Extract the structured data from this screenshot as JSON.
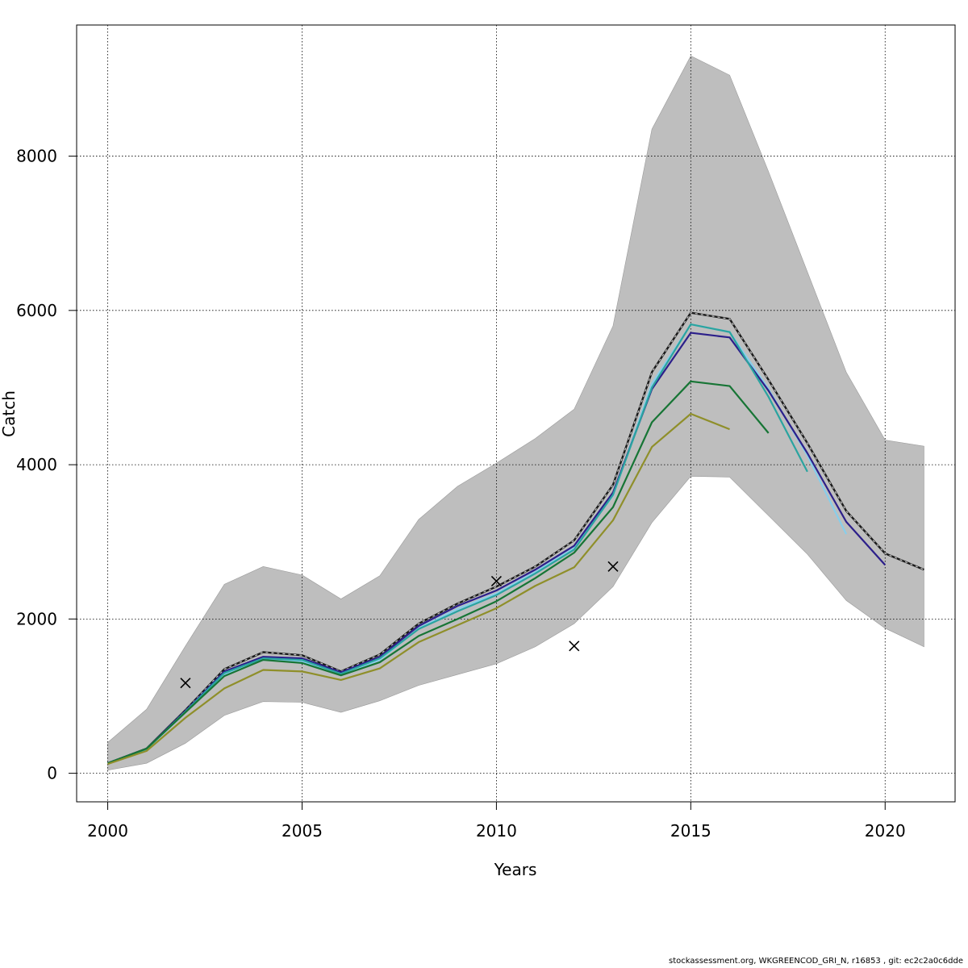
{
  "chart_data": {
    "type": "line",
    "xlabel": "Years",
    "ylabel": "Catch",
    "xlim": [
      1999.2,
      2021.8
    ],
    "ylim": [
      -370,
      9700
    ],
    "xticks": [
      2000,
      2005,
      2010,
      2015,
      2020
    ],
    "yticks": [
      0,
      2000,
      4000,
      6000,
      8000
    ],
    "grid": true,
    "legend": "none",
    "band": {
      "x": [
        2000,
        2001,
        2002,
        2003,
        2004,
        2005,
        2006,
        2007,
        2008,
        2009,
        2010,
        2011,
        2012,
        2013,
        2014,
        2015,
        2016,
        2017,
        2018,
        2019,
        2020,
        2021
      ],
      "upper": [
        400,
        830,
        1650,
        2450,
        2680,
        2570,
        2260,
        2560,
        3290,
        3720,
        4020,
        4340,
        4720,
        5800,
        8350,
        9300,
        9050,
        7800,
        6500,
        5200,
        4320,
        4240
      ],
      "lower": [
        40,
        130,
        390,
        750,
        930,
        920,
        790,
        940,
        1140,
        1280,
        1420,
        1640,
        1940,
        2420,
        3250,
        3850,
        3840,
        3340,
        2840,
        2240,
        1880,
        1640
      ],
      "color": "#bebebe"
    },
    "series": [
      {
        "color": "#1a1a1a",
        "dashed": true,
        "x": [
          2000,
          2001,
          2002,
          2003,
          2004,
          2005,
          2006,
          2007,
          2008,
          2009,
          2010,
          2011,
          2012,
          2013,
          2014,
          2015,
          2016,
          2017,
          2018,
          2019,
          2020,
          2021
        ],
        "values": [
          130,
          320,
          820,
          1350,
          1570,
          1530,
          1320,
          1540,
          1940,
          2200,
          2420,
          2680,
          3020,
          3740,
          5200,
          5970,
          5890,
          5100,
          4280,
          3400,
          2850,
          2640
        ]
      },
      {
        "color": "#87ceeb",
        "dashed": false,
        "x": [
          2000,
          2001,
          2002,
          2003,
          2004,
          2005,
          2006,
          2007,
          2008,
          2009,
          2010,
          2011,
          2012,
          2013,
          2014,
          2015,
          2016,
          2017,
          2018,
          2019
        ],
        "values": [
          130,
          310,
          790,
          1280,
          1470,
          1450,
          1280,
          1470,
          1880,
          2130,
          2330,
          2610,
          2920,
          3600,
          5050,
          5820,
          5720,
          4980,
          4120,
          3100
        ]
      },
      {
        "color": "#2c1f8a",
        "dashed": false,
        "x": [
          2000,
          2001,
          2002,
          2003,
          2004,
          2005,
          2006,
          2007,
          2008,
          2009,
          2010,
          2011,
          2012,
          2013,
          2014,
          2015,
          2016,
          2017,
          2018,
          2019,
          2020
        ],
        "values": [
          130,
          320,
          810,
          1320,
          1510,
          1490,
          1310,
          1510,
          1910,
          2170,
          2370,
          2640,
          2950,
          3640,
          4980,
          5710,
          5650,
          4960,
          4150,
          3260,
          2700
        ]
      },
      {
        "color": "#2aa4a0",
        "dashed": false,
        "x": [
          2000,
          2001,
          2002,
          2003,
          2004,
          2005,
          2006,
          2007,
          2008,
          2009,
          2010,
          2011,
          2012,
          2013,
          2014,
          2015,
          2016,
          2017,
          2018
        ],
        "values": [
          130,
          315,
          800,
          1300,
          1490,
          1470,
          1290,
          1490,
          1870,
          2100,
          2310,
          2590,
          2900,
          3610,
          5000,
          5820,
          5720,
          4880,
          3910
        ]
      },
      {
        "color": "#177535",
        "dashed": false,
        "x": [
          2000,
          2001,
          2002,
          2003,
          2004,
          2005,
          2006,
          2007,
          2008,
          2009,
          2010,
          2011,
          2012,
          2013,
          2014,
          2015,
          2016,
          2017
        ],
        "values": [
          130,
          320,
          790,
          1260,
          1470,
          1430,
          1270,
          1440,
          1780,
          2000,
          2230,
          2530,
          2860,
          3450,
          4550,
          5080,
          5020,
          4410
        ]
      },
      {
        "color": "#8f8f2a",
        "dashed": false,
        "x": [
          2000,
          2001,
          2002,
          2003,
          2004,
          2005,
          2006,
          2007,
          2008,
          2009,
          2010,
          2011,
          2012,
          2013,
          2014,
          2015,
          2016
        ],
        "values": [
          120,
          290,
          720,
          1100,
          1340,
          1320,
          1210,
          1360,
          1700,
          1920,
          2140,
          2430,
          2670,
          3280,
          4230,
          4660,
          4460
        ]
      }
    ],
    "observations": {
      "marker": "x",
      "x": [
        2002,
        2010,
        2012,
        2013
      ],
      "values": [
        1170,
        2490,
        1650,
        2680
      ]
    }
  },
  "footer": {
    "text": "stockassessment.org, WKGREENCOD_GRI_N, r16853 , git: ec2c2a0c6dde"
  }
}
